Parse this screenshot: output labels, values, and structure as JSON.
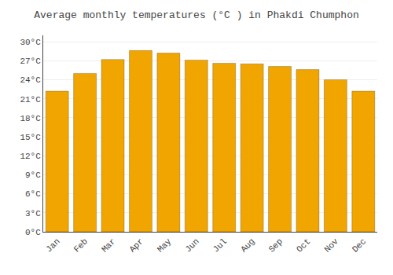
{
  "chart_data": {
    "type": "bar",
    "title": "Average monthly temperatures (°C ) in Phakdi Chumphon",
    "categories": [
      "Jan",
      "Feb",
      "Mar",
      "Apr",
      "May",
      "Jun",
      "Jul",
      "Aug",
      "Sep",
      "Oct",
      "Nov",
      "Dec"
    ],
    "values": [
      22.2,
      25.0,
      27.2,
      28.6,
      28.2,
      27.1,
      26.6,
      26.5,
      26.1,
      25.6,
      24.0,
      22.2
    ],
    "color": "#F0A500",
    "ylim": [
      0,
      31
    ],
    "yticks": [
      {
        "value": 0,
        "label": "0°C"
      },
      {
        "value": 3,
        "label": "3°C"
      },
      {
        "value": 6,
        "label": "6°C"
      },
      {
        "value": 9,
        "label": "9°C"
      },
      {
        "value": 12,
        "label": "12°C"
      },
      {
        "value": 15,
        "label": "15°C"
      },
      {
        "value": 18,
        "label": "18°C"
      },
      {
        "value": 21,
        "label": "21°C"
      },
      {
        "value": 24,
        "label": "24°C"
      },
      {
        "value": 27,
        "label": "27°C"
      },
      {
        "value": 30,
        "label": "30°C"
      }
    ],
    "grid": true
  }
}
